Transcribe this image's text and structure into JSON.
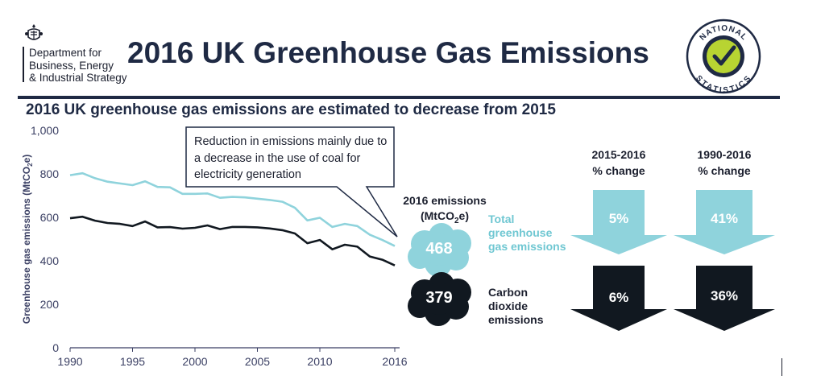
{
  "header": {
    "department": "Department for\nBusiness, Energy\n& Industrial Strategy",
    "title": "2016 UK Greenhouse Gas Emissions",
    "badge_top": "NATIONAL",
    "badge_bottom": "STATISTICS"
  },
  "subtitle": "2016 UK greenhouse gas emissions are estimated to decrease from 2015",
  "callout": "Reduction in emissions mainly due to a decrease in the use of coal for electricity generation",
  "emissions": {
    "heading_line1": "2016 emissions",
    "heading_line2_pre": "(MtCO",
    "heading_line2_sub": "2",
    "heading_line2_post": "e)",
    "total_value": "468",
    "co2_value": "379",
    "total_label": "Total\ngreenhouse\ngas emissions",
    "co2_label": "Carbon\ndioxide\nemissions"
  },
  "changes": {
    "col1_header": "2015-2016\n% change",
    "col2_header": "1990-2016\n% change",
    "total_2015_2016": "5%",
    "total_1990_2016": "41%",
    "co2_2015_2016": "6%",
    "co2_1990_2016": "36%"
  },
  "colors": {
    "total": "#8fd3dc",
    "co2": "#111820",
    "axis": "#3a3f63",
    "navy": "#1f2a44"
  },
  "chart_data": {
    "type": "line",
    "x": [
      1990,
      1991,
      1992,
      1993,
      1994,
      1995,
      1996,
      1997,
      1998,
      1999,
      2000,
      2001,
      2002,
      2003,
      2004,
      2005,
      2006,
      2007,
      2008,
      2009,
      2010,
      2011,
      2012,
      2013,
      2014,
      2015,
      2016
    ],
    "series": [
      {
        "name": "Total greenhouse gas emissions",
        "values": [
          794,
          803,
          780,
          764,
          756,
          748,
          766,
          740,
          738,
          708,
          708,
          710,
          690,
          694,
          692,
          686,
          680,
          672,
          644,
          586,
          598,
          556,
          570,
          560,
          520,
          496,
          468
        ]
      },
      {
        "name": "Carbon dioxide emissions",
        "values": [
          596,
          603,
          585,
          574,
          570,
          560,
          581,
          554,
          555,
          548,
          552,
          563,
          546,
          556,
          556,
          554,
          549,
          541,
          526,
          481,
          496,
          453,
          474,
          465,
          420,
          405,
          379
        ]
      }
    ],
    "ylabel": "Greenhouse gas emissions (MtCO2e)",
    "ylabel_pre": "Greenhouse gas emissions (MtCO",
    "ylabel_sub": "2",
    "ylabel_post": "e)",
    "ylim": [
      0,
      1000
    ],
    "yticks": [
      0,
      200,
      400,
      600,
      800,
      1000
    ],
    "ytick_labels": [
      "0",
      "200",
      "400",
      "600",
      "800",
      "1,000"
    ],
    "xticks": [
      1990,
      1995,
      2000,
      2005,
      2010,
      2016
    ],
    "xtick_labels": [
      "1990",
      "1995",
      "2000",
      "2005",
      "2010",
      "2016"
    ],
    "grid": false
  }
}
